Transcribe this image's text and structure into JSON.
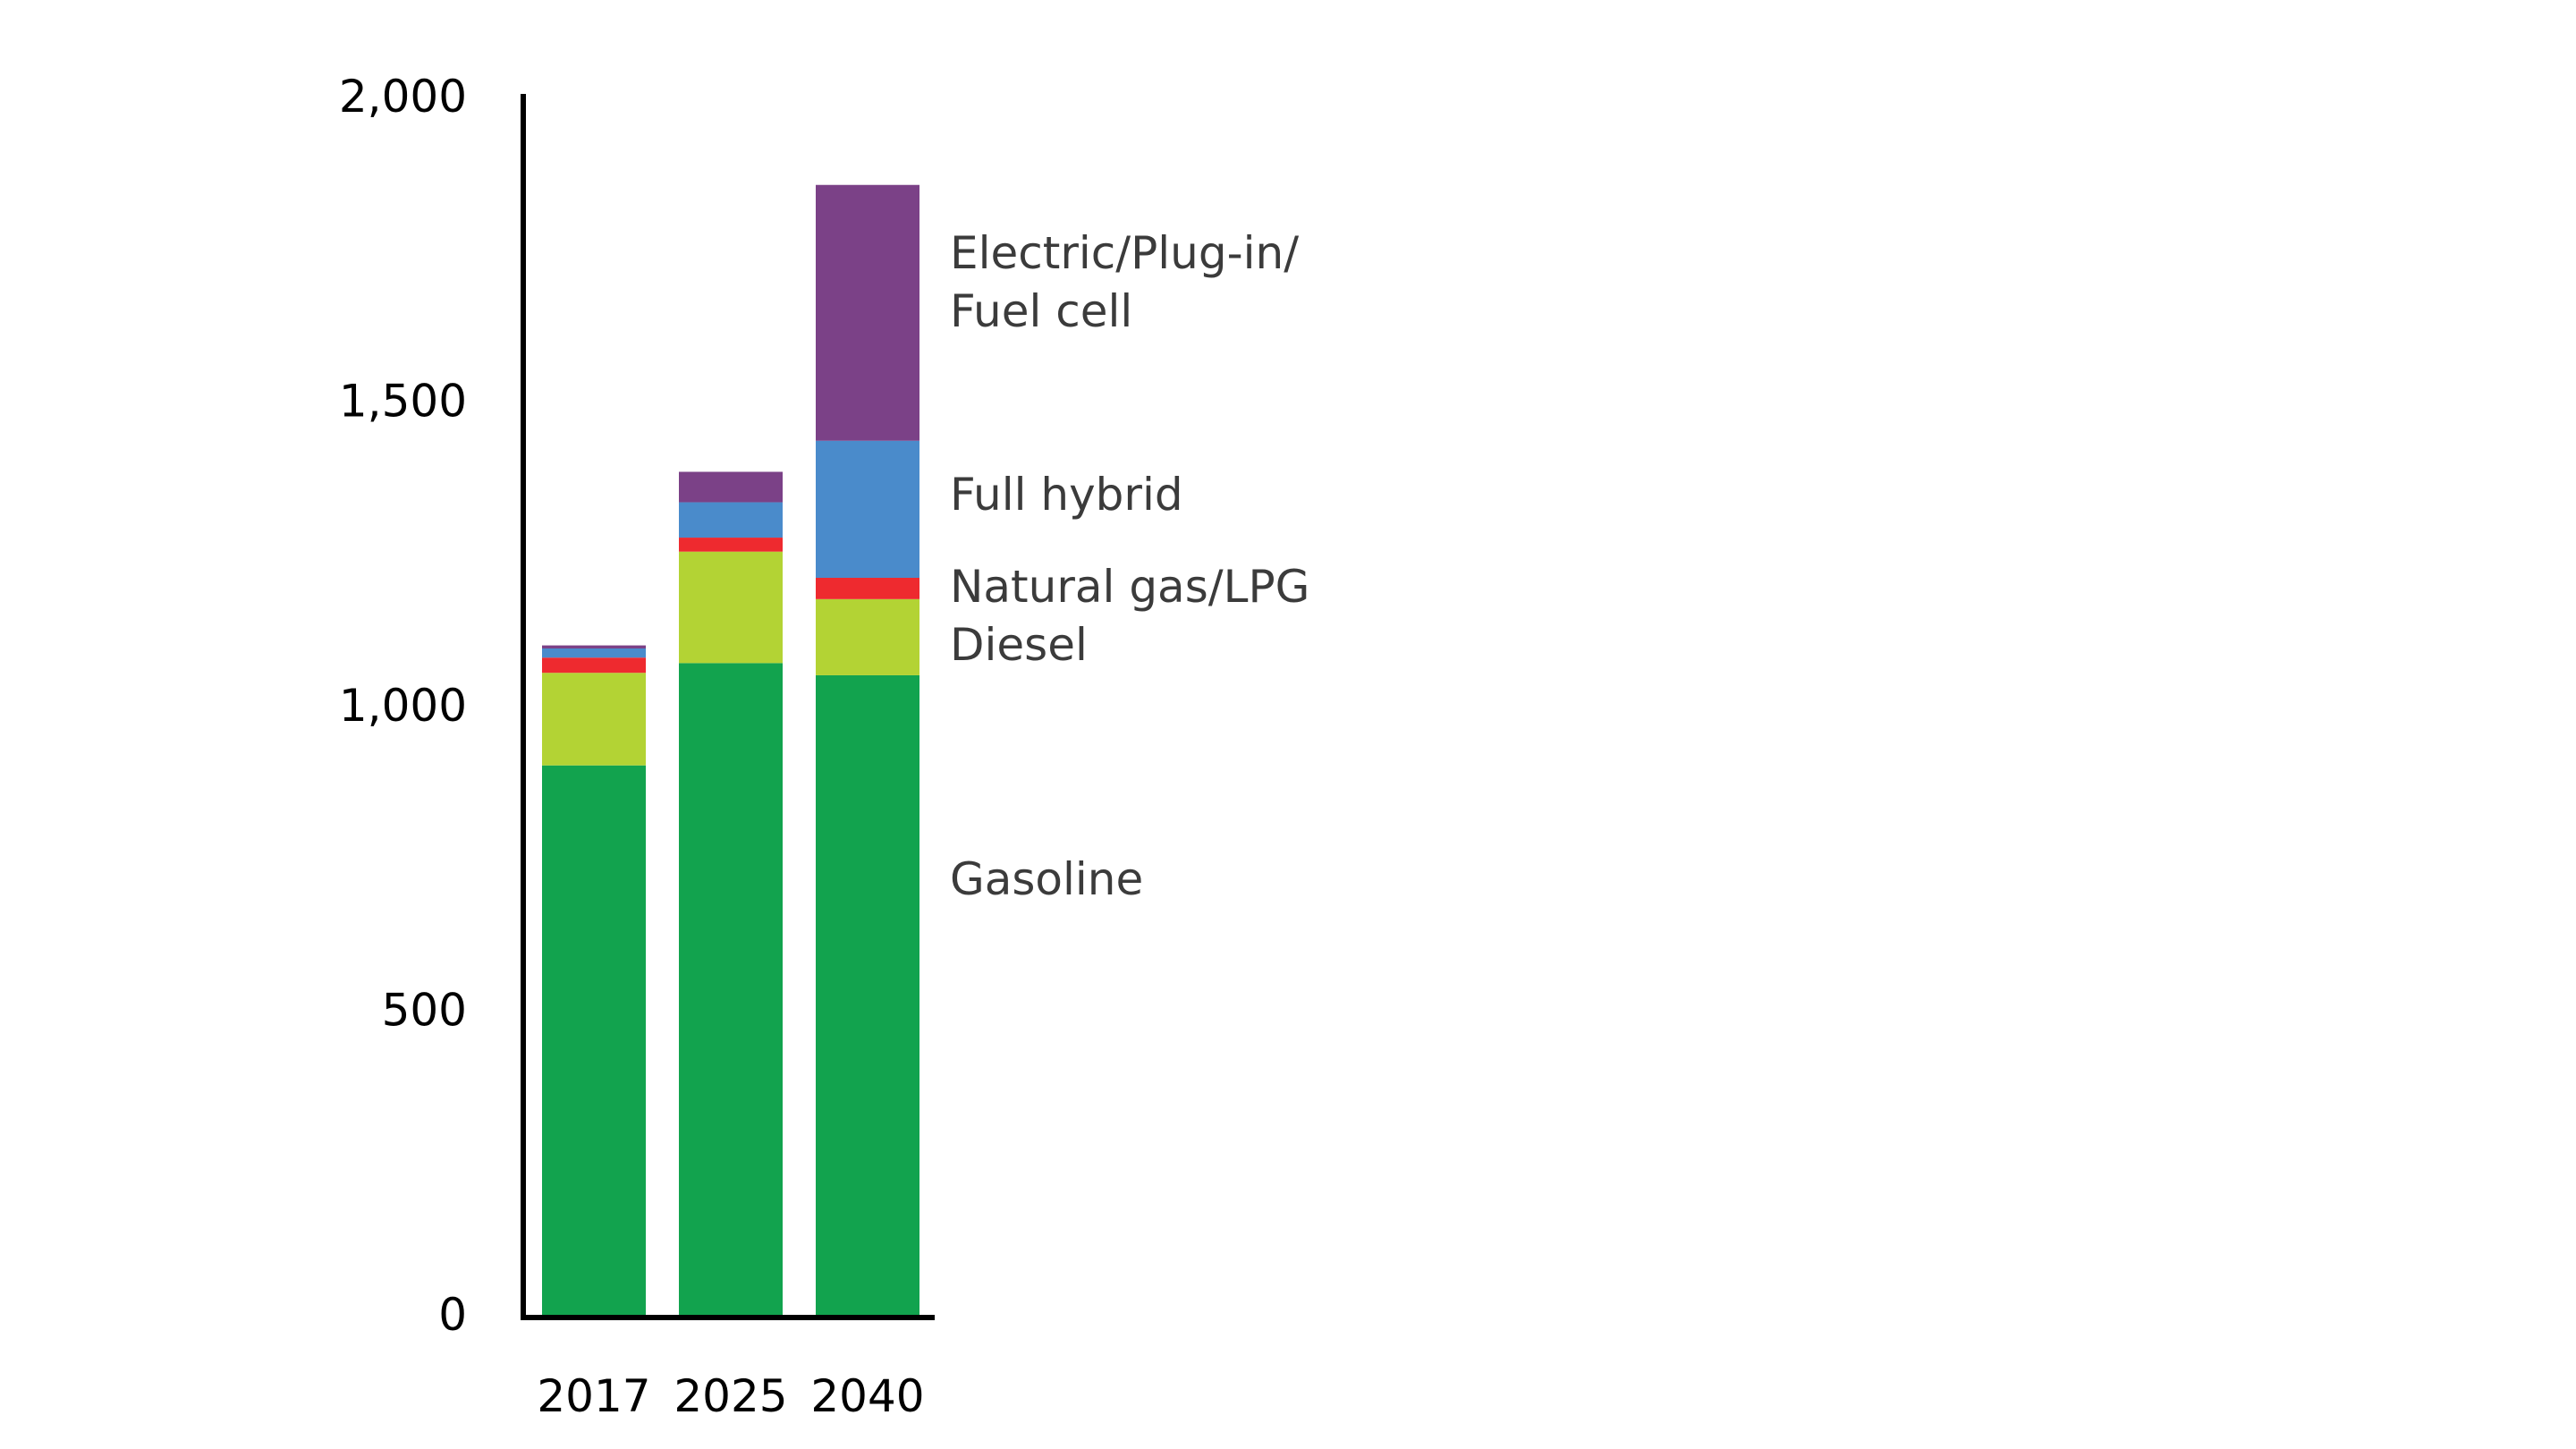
{
  "chart_data": {
    "type": "bar",
    "stacked": true,
    "categories": [
      "2017",
      "2025",
      "2040"
    ],
    "ylim": [
      0,
      2000
    ],
    "yticks": [
      "0",
      "500",
      "1,000",
      "1,500",
      "2,000"
    ],
    "ytick_values": [
      0,
      500,
      1000,
      1500,
      2000
    ],
    "series": [
      {
        "name": "Gasoline",
        "color": "#12a34e",
        "values": [
          902,
          1070,
          1050
        ]
      },
      {
        "name": "Diesel",
        "color": "#b3d334",
        "values": [
          152,
          183,
          125
        ]
      },
      {
        "name": "Natural gas/LPG",
        "color": "#ee2a2f",
        "values": [
          25,
          23,
          35
        ]
      },
      {
        "name": "Full hybrid",
        "color": "#4a8bcb",
        "values": [
          15,
          58,
          225
        ]
      },
      {
        "name": "Electric/Plug-in/ Fuel cell",
        "color": "#7b4187",
        "values": [
          5,
          50,
          420
        ]
      }
    ],
    "label_lines": {
      "electric": [
        "Electric/Plug-in/",
        "Fuel cell"
      ],
      "hybrid": [
        "Full hybrid"
      ],
      "natgas": [
        "Natural gas/LPG"
      ],
      "diesel": [
        "Diesel"
      ],
      "gasoline": [
        "Gasoline"
      ]
    },
    "grid": false,
    "legend": "right-side inline labels"
  }
}
